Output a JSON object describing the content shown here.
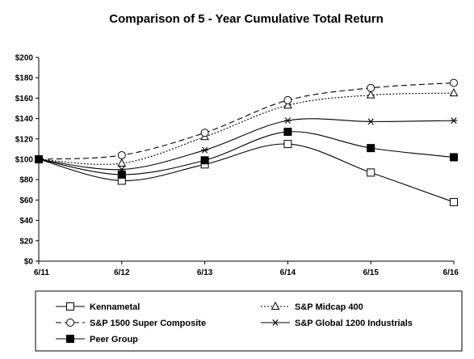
{
  "chart_data": {
    "type": "line",
    "title": "Comparison of 5 - Year Cumulative Total Return",
    "categories": [
      "6/11",
      "6/12",
      "6/13",
      "6/14",
      "6/15",
      "6/16"
    ],
    "y_ticks": [
      "$0",
      "$20",
      "$40",
      "$60",
      "$80",
      "$100",
      "$120",
      "$140",
      "$160",
      "$180",
      "$200"
    ],
    "ylim": [
      0,
      200
    ],
    "grid": false,
    "legend_placement": "bottom",
    "series": [
      {
        "name": "Kennametal",
        "values": [
          100,
          79,
          95,
          115,
          87,
          58
        ],
        "marker": "open-square",
        "dash": "solid"
      },
      {
        "name": "S&P Midcap 400",
        "values": [
          100,
          96,
          122,
          153,
          163,
          165
        ],
        "marker": "open-triangle",
        "dash": "dotted"
      },
      {
        "name": "S&P 1500 Super Composite",
        "values": [
          100,
          104,
          126,
          158,
          170,
          175
        ],
        "marker": "open-circle",
        "dash": "dashed"
      },
      {
        "name": "S&P Global 1200 Industrials",
        "values": [
          100,
          90,
          109,
          138,
          137,
          138
        ],
        "marker": "asterisk",
        "dash": "solid"
      },
      {
        "name": "Peer Group",
        "values": [
          100,
          85,
          99,
          127,
          111,
          102
        ],
        "marker": "filled-square",
        "dash": "solid"
      }
    ]
  }
}
